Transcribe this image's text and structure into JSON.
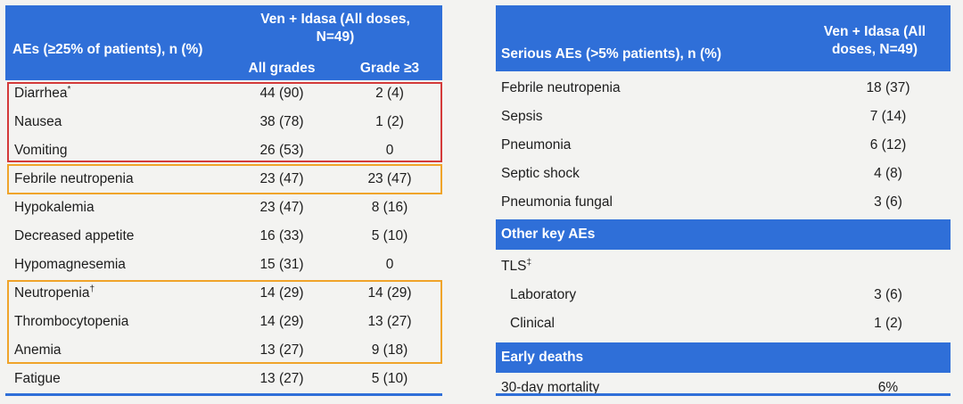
{
  "left_table": {
    "header": {
      "col0": "AEs (≥25% of patients), n (%)",
      "group": "Ven + Idasa (All doses, N=49)",
      "col1": "All grades",
      "col2": "Grade ≥3"
    },
    "rows": [
      {
        "label": "Diarrhea",
        "sup": "*",
        "all": "44 (90)",
        "g3": "2 (4)"
      },
      {
        "label": "Nausea",
        "sup": "",
        "all": "38 (78)",
        "g3": "1 (2)"
      },
      {
        "label": "Vomiting",
        "sup": "",
        "all": "26 (53)",
        "g3": "0"
      },
      {
        "label": "Febrile neutropenia",
        "sup": "",
        "all": "23 (47)",
        "g3": "23 (47)"
      },
      {
        "label": "Hypokalemia",
        "sup": "",
        "all": "23 (47)",
        "g3": "8 (16)"
      },
      {
        "label": "Decreased appetite",
        "sup": "",
        "all": "16 (33)",
        "g3": "5 (10)"
      },
      {
        "label": "Hypomagnesemia",
        "sup": "",
        "all": "15 (31)",
        "g3": "0"
      },
      {
        "label": "Neutropenia",
        "sup": "†",
        "all": "14 (29)",
        "g3": "14 (29)"
      },
      {
        "label": "Thrombocytopenia",
        "sup": "",
        "all": "14 (29)",
        "g3": "13 (27)"
      },
      {
        "label": "Anemia",
        "sup": "",
        "all": "13 (27)",
        "g3": "9 (18)"
      },
      {
        "label": "Fatigue",
        "sup": "",
        "all": "13 (27)",
        "g3": "5 (10)"
      }
    ]
  },
  "right_table": {
    "header": {
      "col0": "Serious AEs (>5% patients), n (%)",
      "group": "Ven + Idasa (All doses, N=49)"
    },
    "serious_rows": [
      {
        "label": "Febrile neutropenia",
        "value": "18 (37)"
      },
      {
        "label": "Sepsis",
        "value": "7 (14)"
      },
      {
        "label": "Pneumonia",
        "value": "6 (12)"
      },
      {
        "label": "Septic shock",
        "value": "4 (8)"
      },
      {
        "label": "Pneumonia fungal",
        "value": "3 (6)"
      }
    ],
    "other_key_title": "Other key AEs",
    "tls": {
      "label": "TLS",
      "sup": "‡"
    },
    "tls_rows": [
      {
        "label": "Laboratory",
        "value": "3 (6)"
      },
      {
        "label": "Clinical",
        "value": "1 (2)"
      }
    ],
    "early_deaths_title": "Early deaths",
    "mortality": {
      "label": "30-day mortality",
      "value": "6%"
    }
  },
  "colors": {
    "header_blue": "#2f6fd8",
    "red_box": "#d43a3a",
    "orange_box": "#f0a42a"
  }
}
